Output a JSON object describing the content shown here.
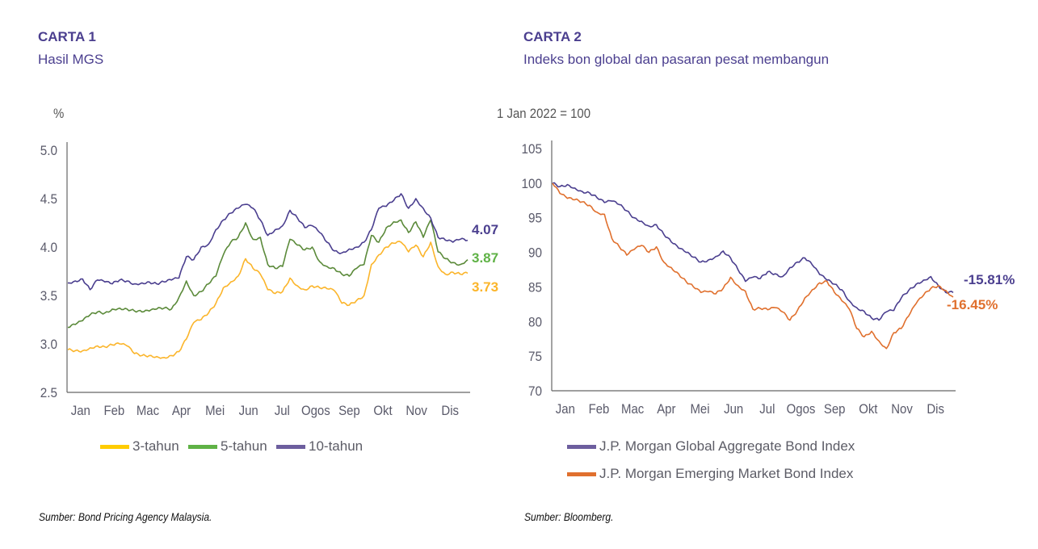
{
  "page": {
    "left": {
      "number": "CARTA 1",
      "title": "Hasil MGS",
      "unit": "%",
      "source": "Sumber: Bond Pricing Agency Malaysia."
    },
    "right": {
      "number": "CARTA 2",
      "title": "Indeks bon global dan pasaran pesat membangun",
      "unit": "1 Jan 2022 = 100",
      "source": "Sumber: Bloomberg."
    }
  },
  "colors": {
    "title": "#4b3f8f",
    "three_year": "#fbb52b",
    "five_year": "#5b8a3a",
    "ten_year": "#4b3f8f",
    "global": "#4b3f8f",
    "emerging": "#e0702e",
    "legend_three_year": "#ffcc00",
    "legend_five_year": "#5fb246",
    "legend_ten_year": "#6d5e9e",
    "label_five_year": "#5fb246",
    "label_three_year": "#fbb52b"
  },
  "chart_data": [
    {
      "type": "line",
      "title": "Hasil MGS",
      "ylabel": "%",
      "xlabel": "",
      "ylim": [
        2.5,
        5.0
      ],
      "yticks": [
        "2.5",
        "3.0",
        "3.5",
        "4.0",
        "4.5",
        "5.0"
      ],
      "ytick_values": [
        2.5,
        3.0,
        3.5,
        4.0,
        4.5,
        5.0
      ],
      "categories": [
        "Jan",
        "Feb",
        "Mac",
        "Apr",
        "Mei",
        "Jun",
        "Jul",
        "Ogos",
        "Sep",
        "Okt",
        "Nov",
        "Dis"
      ],
      "grid": false,
      "legend": "bottom",
      "series": [
        {
          "name": "3-tahun",
          "color_key": "three_year",
          "end_label": "3.73",
          "values": [
            2.94,
            2.93,
            2.93,
            2.96,
            2.98,
            2.97,
            2.99,
            3.0,
            2.98,
            2.9,
            2.88,
            2.88,
            2.87,
            2.86,
            2.88,
            2.92,
            3.05,
            3.22,
            3.25,
            3.32,
            3.42,
            3.58,
            3.64,
            3.7,
            3.88,
            3.78,
            3.72,
            3.56,
            3.52,
            3.54,
            3.68,
            3.6,
            3.56,
            3.6,
            3.58,
            3.57,
            3.55,
            3.42,
            3.4,
            3.45,
            3.5,
            3.82,
            3.92,
            4.0,
            4.04,
            4.05,
            3.95,
            4.02,
            3.9,
            4.05,
            3.8,
            3.72,
            3.74,
            3.72,
            3.73
          ]
        },
        {
          "name": "5-tahun",
          "color_key": "five_year",
          "end_label": "3.87",
          "values": [
            3.17,
            3.2,
            3.24,
            3.3,
            3.33,
            3.32,
            3.36,
            3.37,
            3.36,
            3.34,
            3.33,
            3.34,
            3.36,
            3.37,
            3.36,
            3.48,
            3.65,
            3.5,
            3.54,
            3.62,
            3.7,
            3.92,
            4.05,
            4.1,
            4.25,
            4.08,
            4.1,
            3.82,
            3.78,
            3.8,
            4.08,
            4.02,
            3.97,
            4.0,
            3.85,
            3.8,
            3.78,
            3.72,
            3.7,
            3.78,
            3.82,
            4.12,
            4.05,
            4.2,
            4.26,
            4.28,
            4.15,
            4.26,
            4.1,
            4.28,
            3.95,
            3.88,
            3.84,
            3.82,
            3.87
          ]
        },
        {
          "name": "10-tahun",
          "color_key": "ten_year",
          "end_label": "4.07",
          "values": [
            3.63,
            3.65,
            3.67,
            3.56,
            3.66,
            3.64,
            3.62,
            3.66,
            3.65,
            3.62,
            3.63,
            3.64,
            3.62,
            3.64,
            3.66,
            3.68,
            3.9,
            3.87,
            4.0,
            4.03,
            4.18,
            4.28,
            4.35,
            4.4,
            4.44,
            4.4,
            4.28,
            4.12,
            4.18,
            4.22,
            4.38,
            4.3,
            4.2,
            4.22,
            4.15,
            4.05,
            3.96,
            3.94,
            3.98,
            4.0,
            4.05,
            4.18,
            4.4,
            4.42,
            4.48,
            4.55,
            4.4,
            4.5,
            4.4,
            4.3,
            4.1,
            4.07,
            4.05,
            4.08,
            4.07
          ]
        }
      ]
    },
    {
      "type": "line",
      "title": "Indeks bon global dan pasaran pesat membangun",
      "ylabel": "1 Jan 2022 = 100",
      "xlabel": "",
      "ylim": [
        70,
        105
      ],
      "yticks": [
        "70",
        "75",
        "80",
        "85",
        "90",
        "95",
        "100",
        "105"
      ],
      "ytick_values": [
        70,
        75,
        80,
        85,
        90,
        95,
        100,
        105
      ],
      "categories": [
        "Jan",
        "Feb",
        "Mac",
        "Apr",
        "Mei",
        "Jun",
        "Jul",
        "Ogos",
        "Sep",
        "Okt",
        "Nov",
        "Dis"
      ],
      "grid": false,
      "legend": "bottom",
      "series": [
        {
          "name": "J.P. Morgan Global Aggregate Bond Index",
          "color_key": "global",
          "end_label": "-15.81%",
          "values": [
            100.0,
            99.5,
            99.8,
            99.3,
            98.8,
            98.6,
            97.9,
            97.2,
            97.4,
            96.9,
            96.0,
            95.0,
            94.5,
            93.8,
            94.0,
            92.6,
            91.5,
            90.6,
            90.0,
            89.3,
            88.6,
            88.9,
            89.4,
            90.2,
            89.2,
            87.5,
            85.8,
            86.4,
            86.2,
            87.2,
            86.9,
            86.5,
            87.8,
            88.6,
            89.2,
            88.2,
            86.8,
            86.0,
            85.4,
            84.6,
            83.0,
            82.0,
            81.5,
            80.5,
            80.2,
            81.4,
            81.6,
            83.4,
            84.5,
            85.4,
            86.0,
            86.5,
            85.2,
            84.2,
            84.19
          ]
        },
        {
          "name": "J.P. Morgan Emerging Market Bond Index",
          "color_key": "emerging",
          "end_label": "-16.45%",
          "values": [
            100.0,
            98.5,
            97.8,
            97.6,
            97.3,
            96.8,
            95.8,
            95.5,
            92.0,
            90.8,
            89.6,
            90.4,
            91.0,
            90.0,
            90.8,
            88.6,
            87.8,
            86.9,
            85.8,
            85.0,
            84.2,
            84.3,
            84.0,
            84.8,
            86.4,
            85.2,
            84.4,
            81.8,
            81.9,
            81.7,
            82.0,
            81.4,
            80.2,
            81.6,
            83.4,
            84.6,
            85.6,
            85.8,
            84.2,
            83.0,
            81.8,
            79.0,
            77.8,
            78.6,
            77.2,
            76.1,
            78.4,
            79.0,
            80.8,
            82.6,
            83.8,
            84.8,
            85.2,
            84.5,
            83.55
          ]
        }
      ]
    }
  ]
}
